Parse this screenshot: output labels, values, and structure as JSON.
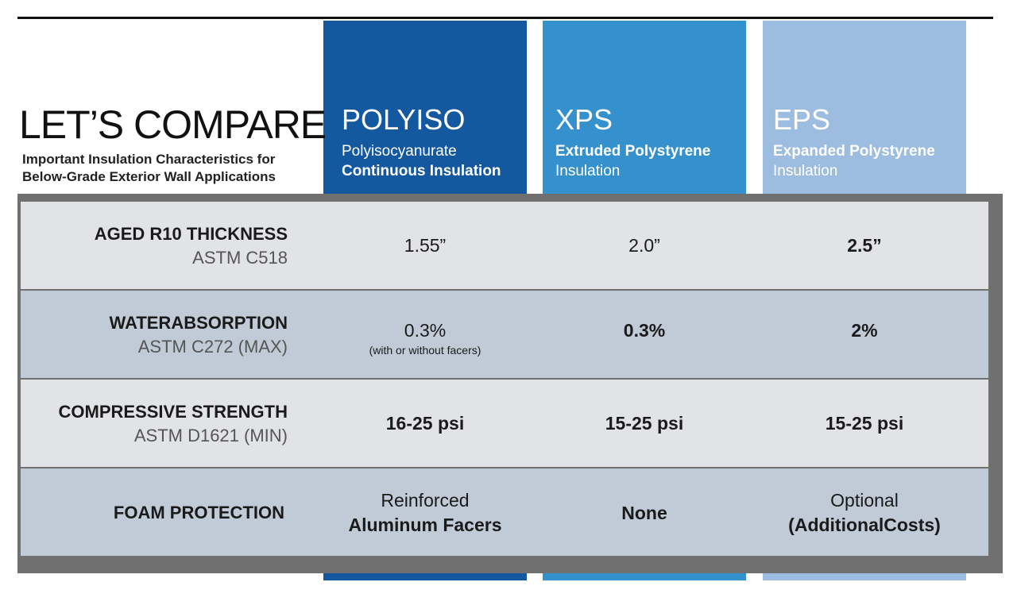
{
  "header": {
    "title": "LET’S COMPARE",
    "subtitle_line1": "Important Insulation Characteristics for",
    "subtitle_line2": "Below-Grade Exterior Wall Applications"
  },
  "columns": [
    {
      "name": "POLYISO",
      "desc1": "Polyisocyanurate",
      "desc2": "Continuous Insulation",
      "color": "#1458a0"
    },
    {
      "name": "XPS",
      "desc1": "Extruded Polystyrene",
      "desc2": "Insulation",
      "color": "#3591ce"
    },
    {
      "name": "EPS",
      "desc1": "Expanded Polystyrene",
      "desc2": "Insulation",
      "color": "#9cbde0"
    }
  ],
  "rows": [
    {
      "label": "AGED R10 THICKNESS",
      "standard": "ASTM C518",
      "values": [
        "1.55”",
        "2.0”",
        "2.5”"
      ]
    },
    {
      "label": "WATERABSORPTION",
      "standard": "ASTM C272 (MAX)",
      "values": [
        "0.3%",
        "0.3%",
        "2%"
      ],
      "note": "(with or without facers)"
    },
    {
      "label": "COMPRESSIVE STRENGTH",
      "standard": "ASTM D1621 (MIN)",
      "values": [
        "16-25 psi",
        "15-25 psi",
        "15-25 psi"
      ]
    },
    {
      "label": "FOAM PROTECTION",
      "standard": "",
      "values": [
        "Reinforced",
        "None",
        "Optional"
      ],
      "values_line2": [
        "Aluminum Facers",
        "",
        "(AdditionalCosts)"
      ]
    }
  ]
}
